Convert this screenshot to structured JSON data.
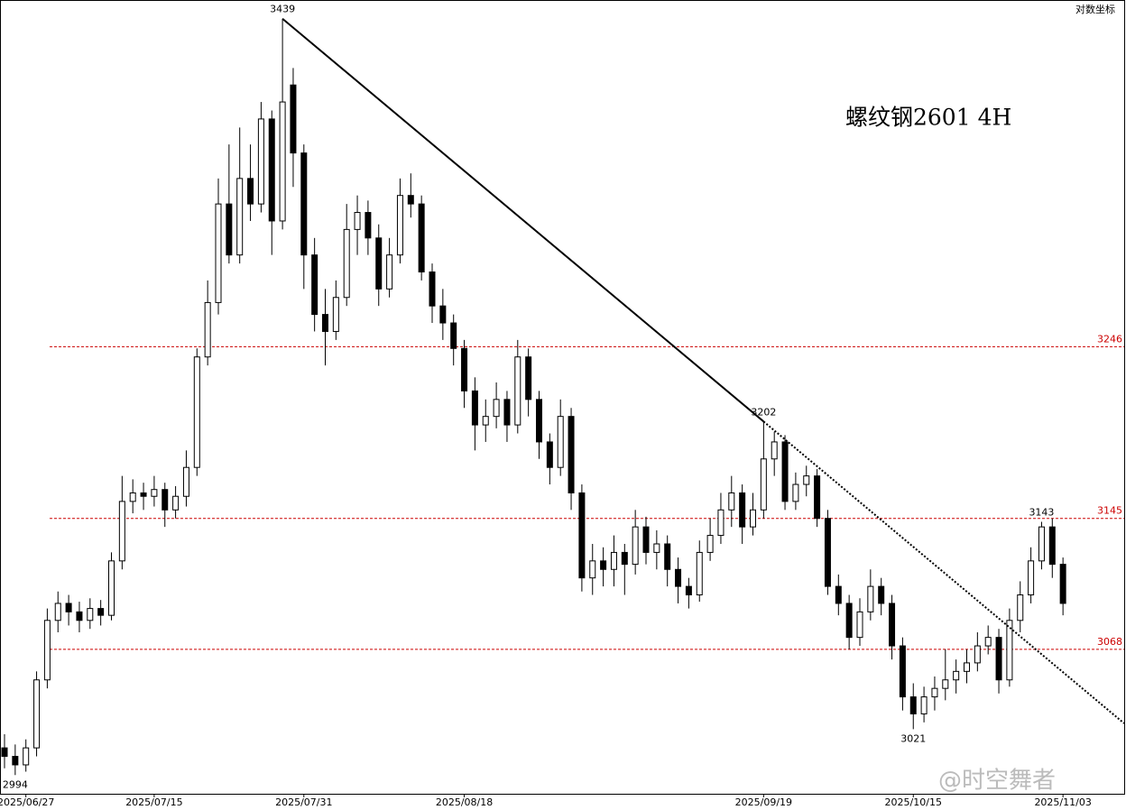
{
  "chart_data": {
    "type": "candlestick",
    "title": "螺纹钢2601  4H",
    "scale_label": "对数坐标",
    "watermark": "@时空舞者",
    "ylim": [
      2983,
      3450
    ],
    "up_color": "#ffffff",
    "down_color": "#000000",
    "level_color": "#cc0000",
    "levels": [
      3246,
      3145,
      3068
    ],
    "categories": [
      null,
      null,
      "2025/06/27",
      null,
      null,
      null,
      null,
      null,
      null,
      null,
      null,
      null,
      null,
      null,
      "2025/07/15",
      null,
      null,
      null,
      null,
      null,
      null,
      null,
      null,
      null,
      null,
      null,
      null,
      null,
      "2025/07/31",
      null,
      null,
      null,
      null,
      null,
      null,
      null,
      null,
      null,
      null,
      null,
      null,
      null,
      null,
      "2025/08/18",
      null,
      null,
      null,
      null,
      null,
      null,
      null,
      null,
      null,
      null,
      null,
      null,
      null,
      null,
      null,
      null,
      null,
      null,
      null,
      null,
      null,
      null,
      null,
      null,
      null,
      null,
      null,
      "2025/09/19",
      null,
      null,
      null,
      null,
      null,
      null,
      null,
      null,
      null,
      null,
      null,
      null,
      null,
      "2025/10/15",
      null,
      null,
      null,
      null,
      null,
      null,
      null,
      null,
      null,
      null,
      null,
      null,
      null,
      "2025/11/03"
    ],
    "open": [
      3010,
      3005,
      3000,
      3010,
      3050,
      3085,
      3095,
      3090,
      3085,
      3092,
      3088,
      3120,
      3155,
      3160,
      3158,
      3162,
      3150,
      3158,
      3175,
      3240,
      3272,
      3330,
      3300,
      3345,
      3330,
      3380,
      3320,
      3400,
      3360,
      3300,
      3265,
      3255,
      3275,
      3315,
      3325,
      3310,
      3280,
      3300,
      3335,
      3330,
      3290,
      3270,
      3260,
      3245,
      3220,
      3200,
      3205,
      3215,
      3200,
      3240,
      3215,
      3190,
      3175,
      3205,
      3160,
      3110,
      3120,
      3115,
      3125,
      3118,
      3140,
      3125,
      3130,
      3115,
      3105,
      3100,
      3125,
      3135,
      3150,
      3160,
      3140,
      3150,
      3180,
      3190,
      3155,
      3165,
      3170,
      3145,
      3105,
      3095,
      3075,
      3090,
      3105,
      3095,
      3070,
      3040,
      3030,
      3040,
      3045,
      3050,
      3055,
      3060,
      3070,
      3075,
      3050,
      3085,
      3100,
      3120,
      3140,
      3118
    ],
    "high": [
      3018,
      3012,
      3015,
      3055,
      3092,
      3102,
      3100,
      3096,
      3098,
      3097,
      3125,
      3170,
      3168,
      3166,
      3170,
      3166,
      3164,
      3185,
      3245,
      3285,
      3345,
      3365,
      3375,
      3365,
      3390,
      3385,
      3439,
      3410,
      3365,
      3310,
      3280,
      3285,
      3330,
      3335,
      3332,
      3318,
      3310,
      3345,
      3348,
      3335,
      3295,
      3280,
      3265,
      3250,
      3228,
      3215,
      3225,
      3220,
      3250,
      3245,
      3220,
      3195,
      3215,
      3210,
      3165,
      3130,
      3128,
      3135,
      3130,
      3150,
      3146,
      3138,
      3135,
      3122,
      3110,
      3132,
      3145,
      3160,
      3170,
      3165,
      3160,
      3202,
      3196,
      3194,
      3172,
      3176,
      3174,
      3150,
      3112,
      3100,
      3098,
      3115,
      3110,
      3100,
      3075,
      3048,
      3046,
      3052,
      3068,
      3062,
      3068,
      3078,
      3082,
      3080,
      3092,
      3108,
      3128,
      3143,
      3145,
      3122
    ],
    "low": [
      2998,
      2994,
      2996,
      3005,
      3045,
      3078,
      3082,
      3078,
      3080,
      3082,
      3085,
      3115,
      3148,
      3150,
      3152,
      3140,
      3145,
      3152,
      3170,
      3235,
      3265,
      3295,
      3295,
      3320,
      3325,
      3300,
      3315,
      3340,
      3280,
      3255,
      3235,
      3250,
      3270,
      3300,
      3300,
      3270,
      3275,
      3295,
      3322,
      3285,
      3260,
      3250,
      3235,
      3210,
      3185,
      3190,
      3198,
      3190,
      3195,
      3205,
      3180,
      3165,
      3170,
      3150,
      3102,
      3100,
      3105,
      3105,
      3100,
      3112,
      3118,
      3115,
      3105,
      3095,
      3092,
      3096,
      3120,
      3130,
      3140,
      3130,
      3135,
      3145,
      3170,
      3150,
      3150,
      3158,
      3140,
      3100,
      3088,
      3068,
      3070,
      3085,
      3088,
      3062,
      3032,
      3021,
      3025,
      3032,
      3038,
      3042,
      3048,
      3055,
      3065,
      3042,
      3046,
      3078,
      3095,
      3115,
      3110,
      3088
    ],
    "close": [
      3005,
      3000,
      3010,
      3050,
      3085,
      3095,
      3090,
      3085,
      3092,
      3088,
      3120,
      3155,
      3160,
      3158,
      3162,
      3150,
      3158,
      3175,
      3240,
      3272,
      3330,
      3300,
      3345,
      3330,
      3380,
      3320,
      3390,
      3360,
      3300,
      3265,
      3255,
      3275,
      3315,
      3325,
      3310,
      3280,
      3300,
      3335,
      3330,
      3290,
      3270,
      3260,
      3245,
      3220,
      3200,
      3205,
      3215,
      3200,
      3240,
      3215,
      3190,
      3175,
      3205,
      3160,
      3110,
      3120,
      3115,
      3125,
      3118,
      3140,
      3125,
      3130,
      3115,
      3105,
      3100,
      3125,
      3135,
      3150,
      3160,
      3140,
      3150,
      3180,
      3190,
      3155,
      3165,
      3170,
      3145,
      3105,
      3095,
      3075,
      3090,
      3105,
      3095,
      3070,
      3040,
      3030,
      3040,
      3045,
      3050,
      3055,
      3060,
      3070,
      3075,
      3050,
      3085,
      3100,
      3120,
      3140,
      3118,
      3095
    ]
  }
}
